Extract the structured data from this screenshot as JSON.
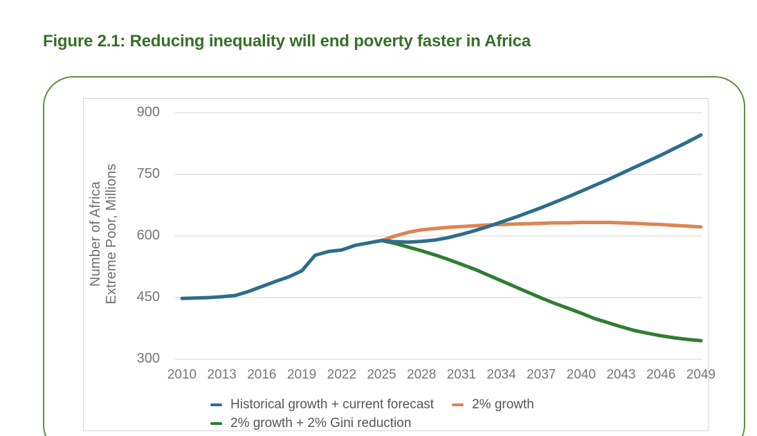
{
  "title": "Figure 2.1: Reducing inequality will end poverty faster in Africa",
  "colors": {
    "title_green": "#376f28",
    "box_border_green": "#5e8e3e",
    "frame_border": "#d6d6d6",
    "gridline": "#e3e3e3",
    "axis_text": "#757575",
    "legend_text": "#555555"
  },
  "chart_data": {
    "type": "line",
    "title": "Figure 2.1: Reducing inequality will end poverty faster in Africa",
    "xlabel": "",
    "ylabel": "Number of Africa Extreme Poor, Millions",
    "ylabel_lines": [
      "Number of Africa",
      "Extreme Poor, Millions"
    ],
    "xlim": [
      2010,
      2049
    ],
    "ylim": [
      300,
      900
    ],
    "grid": true,
    "legend_position": "bottom-inside",
    "y_ticks": [
      900,
      750,
      600,
      450,
      300
    ],
    "x_ticks": [
      2010,
      2013,
      2016,
      2019,
      2022,
      2025,
      2028,
      2031,
      2034,
      2037,
      2040,
      2043,
      2046,
      2049
    ],
    "x": [
      2010,
      2011,
      2012,
      2013,
      2014,
      2015,
      2016,
      2017,
      2018,
      2019,
      2020,
      2021,
      2022,
      2023,
      2024,
      2025,
      2026,
      2027,
      2028,
      2029,
      2030,
      2031,
      2032,
      2033,
      2034,
      2035,
      2036,
      2037,
      2038,
      2039,
      2040,
      2041,
      2042,
      2043,
      2044,
      2045,
      2046,
      2047,
      2048,
      2049
    ],
    "series": [
      {
        "name": "Historical growth + current forecast",
        "color": "#2d6d8c",
        "values": [
          448,
          449,
          450,
          452,
          455,
          465,
          477,
          489,
          500,
          515,
          553,
          562,
          566,
          577,
          583,
          589,
          586,
          585,
          587,
          590,
          596,
          604,
          613,
          623,
          634,
          645,
          657,
          669,
          682,
          695,
          709,
          723,
          737,
          752,
          767,
          782,
          797,
          813,
          829,
          846
        ]
      },
      {
        "name": "2% growth",
        "color": "#dd8452",
        "values": [
          null,
          null,
          null,
          null,
          null,
          null,
          null,
          null,
          null,
          null,
          null,
          null,
          null,
          null,
          null,
          589,
          600,
          609,
          615,
          618,
          621,
          623,
          625,
          627,
          628,
          629,
          630,
          631,
          632,
          632,
          633,
          633,
          633,
          632,
          631,
          629,
          628,
          626,
          624,
          622
        ]
      },
      {
        "name": "2% growth + 2% Gini reduction",
        "color": "#2f7d32",
        "values": [
          null,
          null,
          null,
          null,
          null,
          null,
          null,
          null,
          null,
          null,
          null,
          null,
          null,
          null,
          null,
          589,
          582,
          573,
          564,
          554,
          543,
          531,
          519,
          505,
          491,
          477,
          463,
          449,
          436,
          424,
          412,
          399,
          389,
          379,
          370,
          363,
          357,
          352,
          348,
          345
        ]
      }
    ]
  }
}
